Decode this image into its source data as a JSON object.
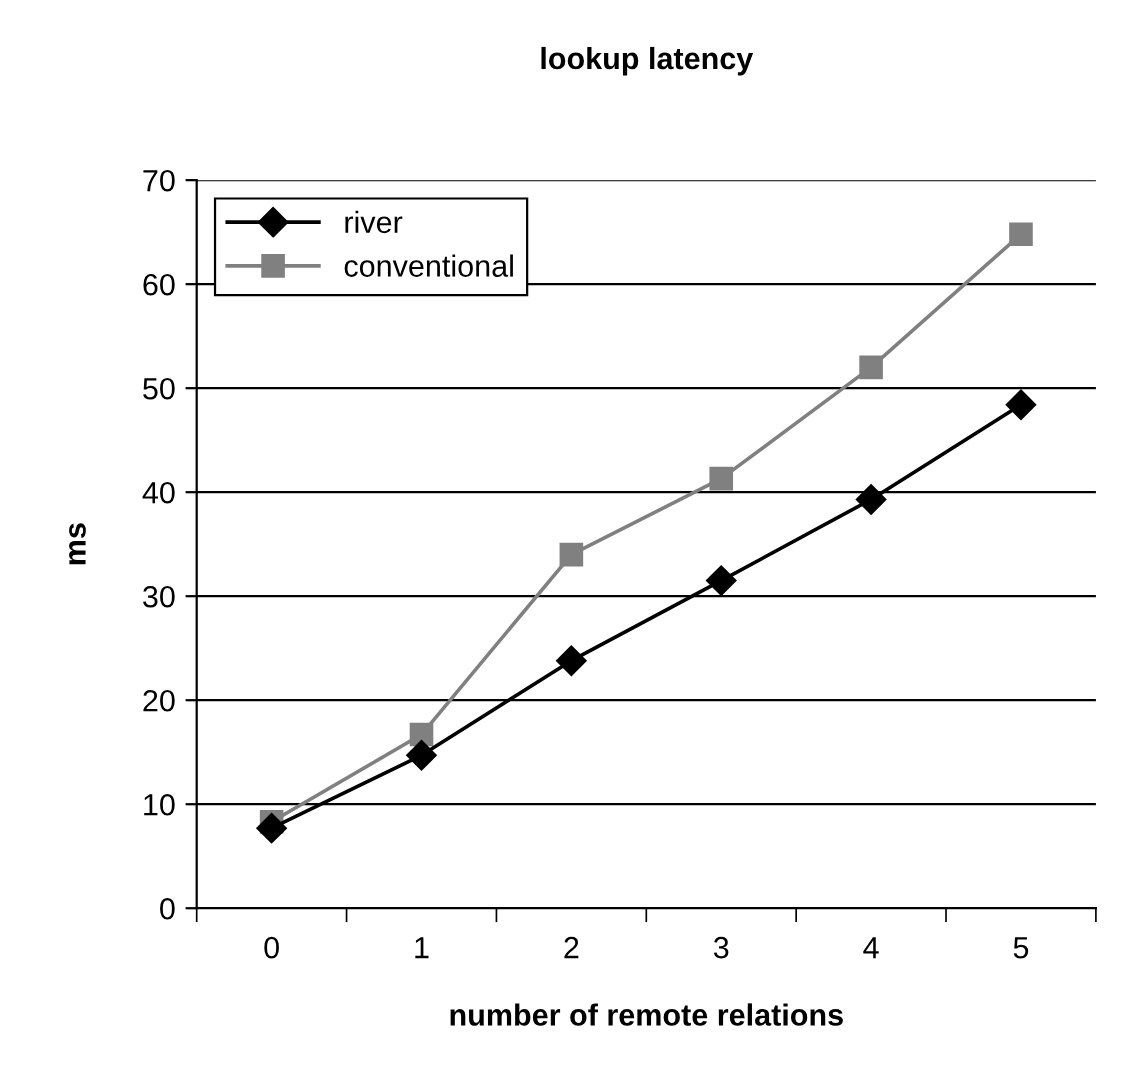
{
  "chart_data": {
    "type": "line",
    "title": "lookup latency",
    "xlabel": "number of remote relations",
    "ylabel": "ms",
    "categories": [
      "0",
      "1",
      "2",
      "3",
      "4",
      "5"
    ],
    "series": [
      {
        "name": "river",
        "color": "#000000",
        "values": [
          7.7,
          14.7,
          23.8,
          31.5,
          39.3,
          48.4
        ],
        "marker": "diamond"
      },
      {
        "name": "conventional",
        "color": "#808080",
        "values": [
          8.3,
          16.7,
          34.0,
          41.3,
          52.0,
          64.8
        ],
        "marker": "square"
      }
    ],
    "ylim": [
      0,
      70
    ],
    "yticks": [
      0,
      10,
      20,
      30,
      40,
      50,
      60,
      70
    ],
    "grid": "y",
    "legend": "top left",
    "line_style": "solid"
  }
}
